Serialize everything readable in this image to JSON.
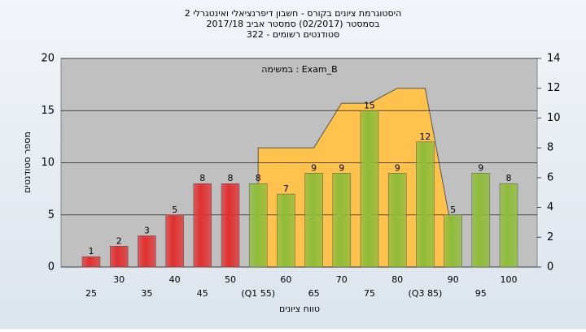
{
  "chart_data": {
    "type": "bar",
    "title": "היסטוגרמת ציונים בקורס - חשבון דיפרנציאלי ואינטגרלי 2",
    "subtitle": "בסמסטר (02/2017) סמסטר אביב 2017/18",
    "subtitle2": "סטודנטים רשומים - 322",
    "annotation": "במשימה : Exam_B",
    "x_label": "טווח ציונים",
    "y_label": "מספר סטודנטים",
    "categories": [
      "25",
      "30",
      "35",
      "40",
      "45",
      "50",
      "(Q1 55)",
      "60",
      "65",
      "70",
      "75",
      "80",
      "(Q3 85)",
      "90",
      "95",
      "100"
    ],
    "series": [
      {
        "values": [
          1,
          2,
          3,
          5,
          8,
          8,
          8,
          7,
          9,
          9,
          15,
          9,
          12,
          5,
          9,
          8
        ],
        "colors": [
          "#e03030",
          "#e03030",
          "#e03030",
          "#e03030",
          "#e03030",
          "#e03030",
          "#8fbc3a",
          "#8fbc3a",
          "#8fbc3a",
          "#8fbc3a",
          "#8fbc3a",
          "#8fbc3a",
          "#8fbc3a",
          "#8fbc3a",
          "#8fbc3a",
          "#8fbc3a"
        ]
      },
      {
        "type": "area",
        "axis": "y2",
        "color": "#ffc34d",
        "values": [
          null,
          null,
          null,
          null,
          null,
          null,
          8,
          8,
          8,
          11,
          11,
          12,
          12,
          2,
          null,
          null
        ]
      }
    ],
    "ylim": [
      0,
      20
    ],
    "yticks": [
      0,
      5,
      10,
      15,
      20
    ],
    "y2lim": [
      0,
      14
    ],
    "y2ticks": [
      0,
      2,
      4,
      6,
      8,
      10,
      12,
      14
    ],
    "grid": true
  }
}
